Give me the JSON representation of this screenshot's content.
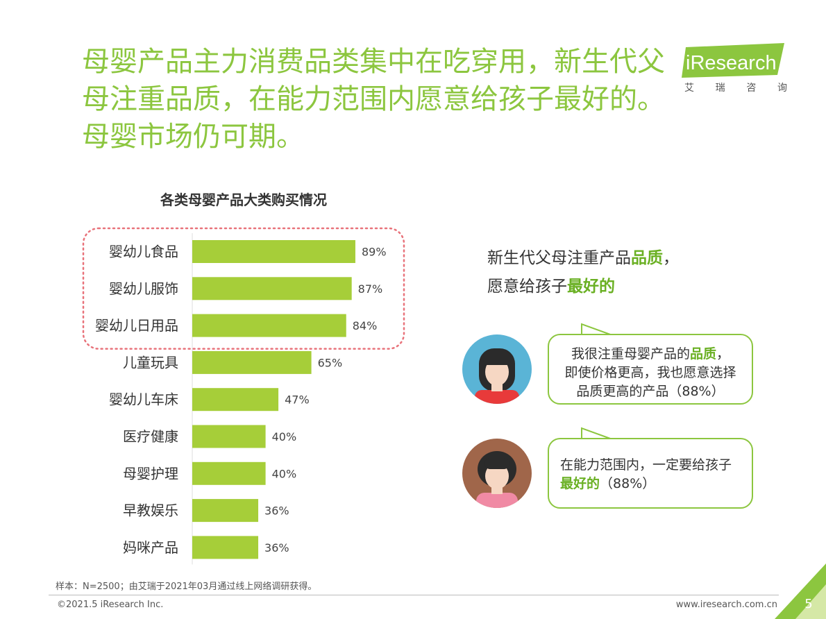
{
  "headline": "母婴产品主力消费品类集中在吃穿用，新生代父母注重品质，在能力范围内愿意给孩子最好的。母婴市场仍可期。",
  "logo": {
    "brand_i": "i",
    "brand_rest": "Research",
    "sub": [
      "艾",
      "瑞",
      "咨",
      "询"
    ],
    "color": "#8cc63f"
  },
  "chart_data": {
    "type": "bar",
    "orientation": "horizontal",
    "title": "各类母婴产品大类购买情况",
    "categories": [
      "婴幼儿食品",
      "婴幼儿服饰",
      "婴幼儿日用品",
      "儿童玩具",
      "婴幼儿车床",
      "医疗健康",
      "母婴护理",
      "早教娱乐",
      "妈咪产品"
    ],
    "values": [
      89,
      87,
      84,
      65,
      47,
      40,
      40,
      36,
      36
    ],
    "value_labels": [
      "89%",
      "87%",
      "84%",
      "65%",
      "47%",
      "40%",
      "40%",
      "36%",
      "36%"
    ],
    "unit": "%",
    "xlim": [
      0,
      100
    ],
    "bar_color": "#a6ce39",
    "highlight_categories": [
      "婴幼儿食品",
      "婴幼儿服饰",
      "婴幼儿日用品"
    ],
    "highlight_color": "#e8727a",
    "grid": false,
    "legend": "none"
  },
  "quote": {
    "line1_pre": "新生代父母注重产品",
    "line1_hl": "品质",
    "line1_post": "，",
    "line2_pre": "愿意给孩子",
    "line2_hl": "最好的"
  },
  "bubble1": {
    "l1_pre": "我很注重母婴产品的",
    "l1_hl": "品质",
    "l1_post": "，",
    "l2": "即使价格更高，我也愿意选择",
    "l3": "品质更高的产品（88%）"
  },
  "bubble2": {
    "l1": "在能力范围内，一定要给孩子",
    "l2_hl": "最好的",
    "l2_post": "（88%）"
  },
  "footnote": "样本：N=2500；由艾瑞于2021年03月通过线上网络调研获得。",
  "copyright": "©2021.5 iResearch Inc.",
  "website": "www.iresearch.com.cn",
  "page_number": "5",
  "colors": {
    "accent": "#8cc63f",
    "highlight_text": "#6ab023",
    "avatar1_bg": "#5ab4d6",
    "avatar2_bg": "#a0664a"
  }
}
